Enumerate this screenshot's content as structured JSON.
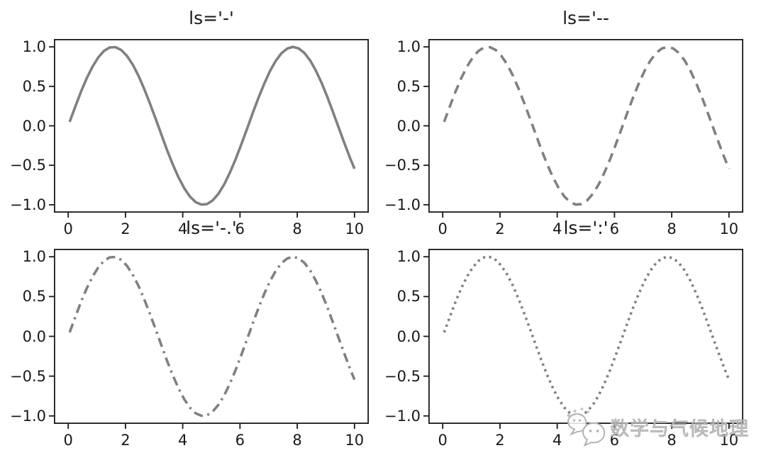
{
  "figure": {
    "background": "#ffffff",
    "line_color": "#808080",
    "axis_color": "#191919"
  },
  "chart_data": {
    "type": "line",
    "x": [
      0.05,
      0.25,
      0.45,
      0.65,
      0.85,
      1.05,
      1.25,
      1.45,
      1.65,
      1.85,
      2.05,
      2.25,
      2.45,
      2.65,
      2.85,
      3.05,
      3.25,
      3.45,
      3.65,
      3.85,
      4.05,
      4.25,
      4.45,
      4.65,
      4.85,
      5.05,
      5.25,
      5.45,
      5.65,
      5.85,
      6.05,
      6.25,
      6.45,
      6.65,
      6.85,
      7.05,
      7.25,
      7.45,
      7.65,
      7.85,
      8.05,
      8.25,
      8.45,
      8.65,
      8.85,
      9.05,
      9.25,
      9.45,
      9.65,
      9.85,
      10.0
    ],
    "y": [
      0.05,
      0.247,
      0.435,
      0.605,
      0.751,
      0.867,
      0.949,
      0.993,
      0.997,
      0.961,
      0.887,
      0.778,
      0.638,
      0.472,
      0.287,
      0.092,
      -0.108,
      -0.304,
      -0.487,
      -0.651,
      -0.789,
      -0.895,
      -0.966,
      -0.998,
      -0.991,
      -0.944,
      -0.859,
      -0.74,
      -0.592,
      -0.42,
      -0.231,
      -0.033,
      0.166,
      0.359,
      0.537,
      0.694,
      0.823,
      0.92,
      0.979,
      1.0,
      0.981,
      0.923,
      0.828,
      0.7,
      0.544,
      0.366,
      0.174,
      -0.025,
      -0.223,
      -0.413,
      -0.544
    ],
    "xlim": [
      -0.5,
      10.5
    ],
    "ylim": [
      -1.1,
      1.1
    ],
    "x_ticks": [
      0,
      2,
      4,
      6,
      8,
      10
    ],
    "x_tick_labels": [
      "0",
      "2",
      "4",
      "6",
      "8",
      "10"
    ],
    "y_ticks": [
      1.0,
      0.5,
      0.0,
      -0.5,
      -1.0
    ],
    "y_tick_labels": [
      "1.0",
      "0.5",
      "0.0",
      "−0.5",
      "−1.0"
    ],
    "grid": false,
    "subplots": [
      {
        "title": "ls='-'",
        "linestyle": "solid"
      },
      {
        "title": "ls='--",
        "linestyle": "dashed"
      },
      {
        "title": "ls='-.'",
        "linestyle": "dashdot"
      },
      {
        "title": "ls=':'",
        "linestyle": "dotted"
      }
    ]
  },
  "watermark": {
    "text": "数学与气候地理",
    "icon": "wechat-logo"
  }
}
